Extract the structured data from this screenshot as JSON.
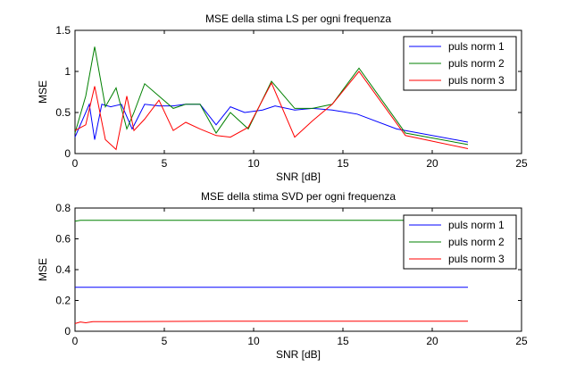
{
  "chart_data": [
    {
      "type": "line",
      "title": "MSE della stima LS per ogni frequenza",
      "xlabel": "SNR [dB]",
      "ylabel": "MSE",
      "xlim": [
        0,
        25
      ],
      "ylim": [
        0,
        1.5
      ],
      "xticks": [
        0,
        5,
        10,
        15,
        20,
        25
      ],
      "xtick_labels": [
        "0",
        "5",
        "10",
        "15",
        "20",
        "25"
      ],
      "yticks": [
        0,
        0.5,
        1,
        1.5
      ],
      "ytick_labels": [
        "0",
        "0.5",
        "1",
        "1.5"
      ],
      "grid": false,
      "legend_position": "top-right",
      "series": [
        {
          "name": "puls norm 1",
          "color": "#0000ff",
          "x": [
            0,
            0.8,
            1.1,
            1.5,
            2.0,
            2.6,
            3.2,
            3.9,
            4.7,
            5.5,
            6.2,
            7.0,
            7.9,
            8.7,
            9.5,
            10.5,
            11.2,
            12.3,
            13.3,
            14.4,
            15.8,
            18.0,
            22.0
          ],
          "y": [
            0.2,
            0.6,
            0.17,
            0.6,
            0.57,
            0.6,
            0.3,
            0.6,
            0.58,
            0.58,
            0.6,
            0.6,
            0.35,
            0.57,
            0.5,
            0.53,
            0.58,
            0.53,
            0.55,
            0.53,
            0.48,
            0.3,
            0.14
          ]
        },
        {
          "name": "puls norm 2",
          "color": "#008000",
          "x": [
            0,
            0.6,
            1.1,
            1.7,
            2.3,
            2.9,
            3.3,
            3.9,
            4.7,
            5.5,
            6.2,
            7.0,
            7.9,
            8.7,
            9.7,
            11.0,
            12.3,
            13.3,
            14.4,
            15.9,
            18.5,
            22.0
          ],
          "y": [
            0.25,
            0.7,
            1.3,
            0.57,
            0.8,
            0.3,
            0.5,
            0.85,
            0.7,
            0.55,
            0.6,
            0.6,
            0.25,
            0.5,
            0.3,
            0.88,
            0.55,
            0.55,
            0.6,
            1.04,
            0.25,
            0.11
          ]
        },
        {
          "name": "puls norm 3",
          "color": "#ff0000",
          "x": [
            0,
            0.6,
            1.1,
            1.7,
            2.3,
            2.9,
            3.3,
            3.9,
            4.7,
            5.5,
            6.2,
            7.0,
            7.9,
            8.7,
            9.7,
            11.0,
            12.3,
            13.3,
            14.4,
            15.9,
            18.5,
            22.0
          ],
          "y": [
            0.28,
            0.35,
            0.82,
            0.17,
            0.05,
            0.7,
            0.28,
            0.42,
            0.65,
            0.28,
            0.38,
            0.3,
            0.22,
            0.2,
            0.32,
            0.86,
            0.2,
            0.4,
            0.6,
            1.0,
            0.22,
            0.06
          ]
        }
      ]
    },
    {
      "type": "line",
      "title": "MSE della stima SVD per ogni frequenza",
      "xlabel": "SNR [dB]",
      "ylabel": "MSE",
      "xlim": [
        0,
        25
      ],
      "ylim": [
        0,
        0.8
      ],
      "xticks": [
        0,
        5,
        10,
        15,
        20,
        25
      ],
      "xtick_labels": [
        "0",
        "5",
        "10",
        "15",
        "20",
        "25"
      ],
      "yticks": [
        0,
        0.2,
        0.4,
        0.6,
        0.8
      ],
      "ytick_labels": [
        "0",
        "0.2",
        "0.4",
        "0.6",
        "0.8"
      ],
      "grid": false,
      "legend_position": "top-right",
      "series": [
        {
          "name": "puls norm 1",
          "color": "#0000ff",
          "x": [
            0,
            22.0
          ],
          "y": [
            0.285,
            0.285
          ]
        },
        {
          "name": "puls norm 2",
          "color": "#008000",
          "x": [
            0,
            0.3,
            22.0
          ],
          "y": [
            0.715,
            0.72,
            0.72
          ]
        },
        {
          "name": "puls norm 3",
          "color": "#ff0000",
          "x": [
            0,
            0.3,
            0.6,
            1.0,
            8.0,
            22.0
          ],
          "y": [
            0.05,
            0.06,
            0.055,
            0.062,
            0.065,
            0.065
          ]
        }
      ]
    }
  ]
}
